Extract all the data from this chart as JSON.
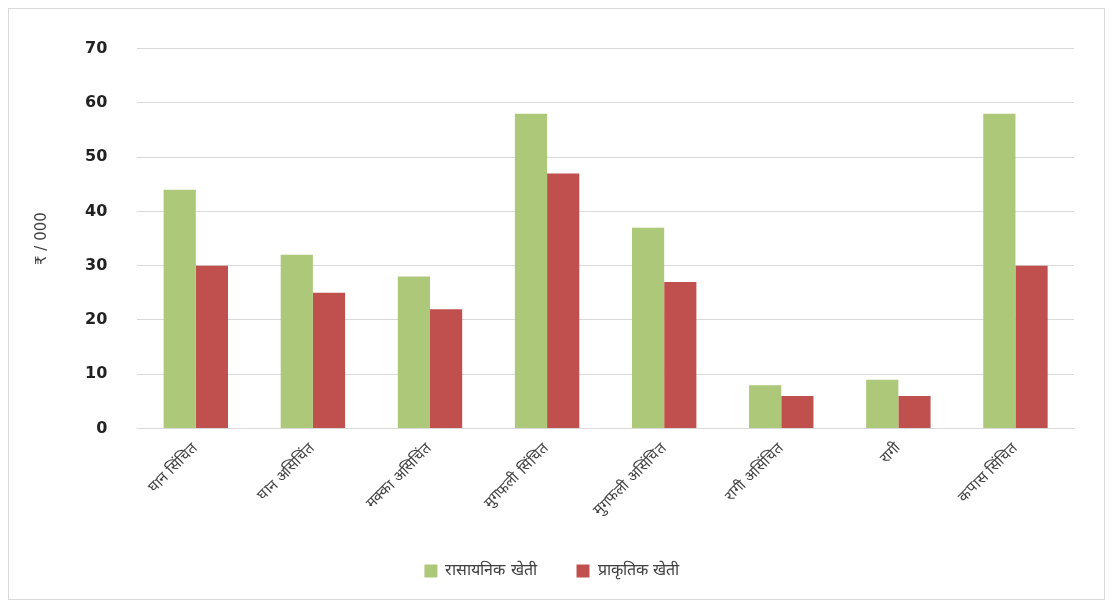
{
  "chart_data": {
    "type": "bar",
    "ylabel": "₹ / 000",
    "categories": [
      "घान सिंचित",
      "घान असिचिंत",
      "मक्का असिचिंत",
      "मुगफली सिंचित",
      "मुगफली असिंचित",
      "रागी असिंचित",
      "रागी",
      "कपास सिंचित"
    ],
    "series": [
      {
        "name": "रासायनिक खेती",
        "color": "#aec87a",
        "values": [
          44,
          32,
          28,
          58,
          37,
          8,
          9,
          58
        ]
      },
      {
        "name": "प्राकृतिक खेती",
        "color": "#c0504d",
        "values": [
          30,
          25,
          22,
          47,
          27,
          6,
          6,
          30
        ]
      }
    ],
    "ylim": [
      0,
      70
    ],
    "yticks": [
      0,
      10,
      20,
      30,
      40,
      50,
      60,
      70
    ],
    "grid": "y",
    "legend": "bottom"
  }
}
